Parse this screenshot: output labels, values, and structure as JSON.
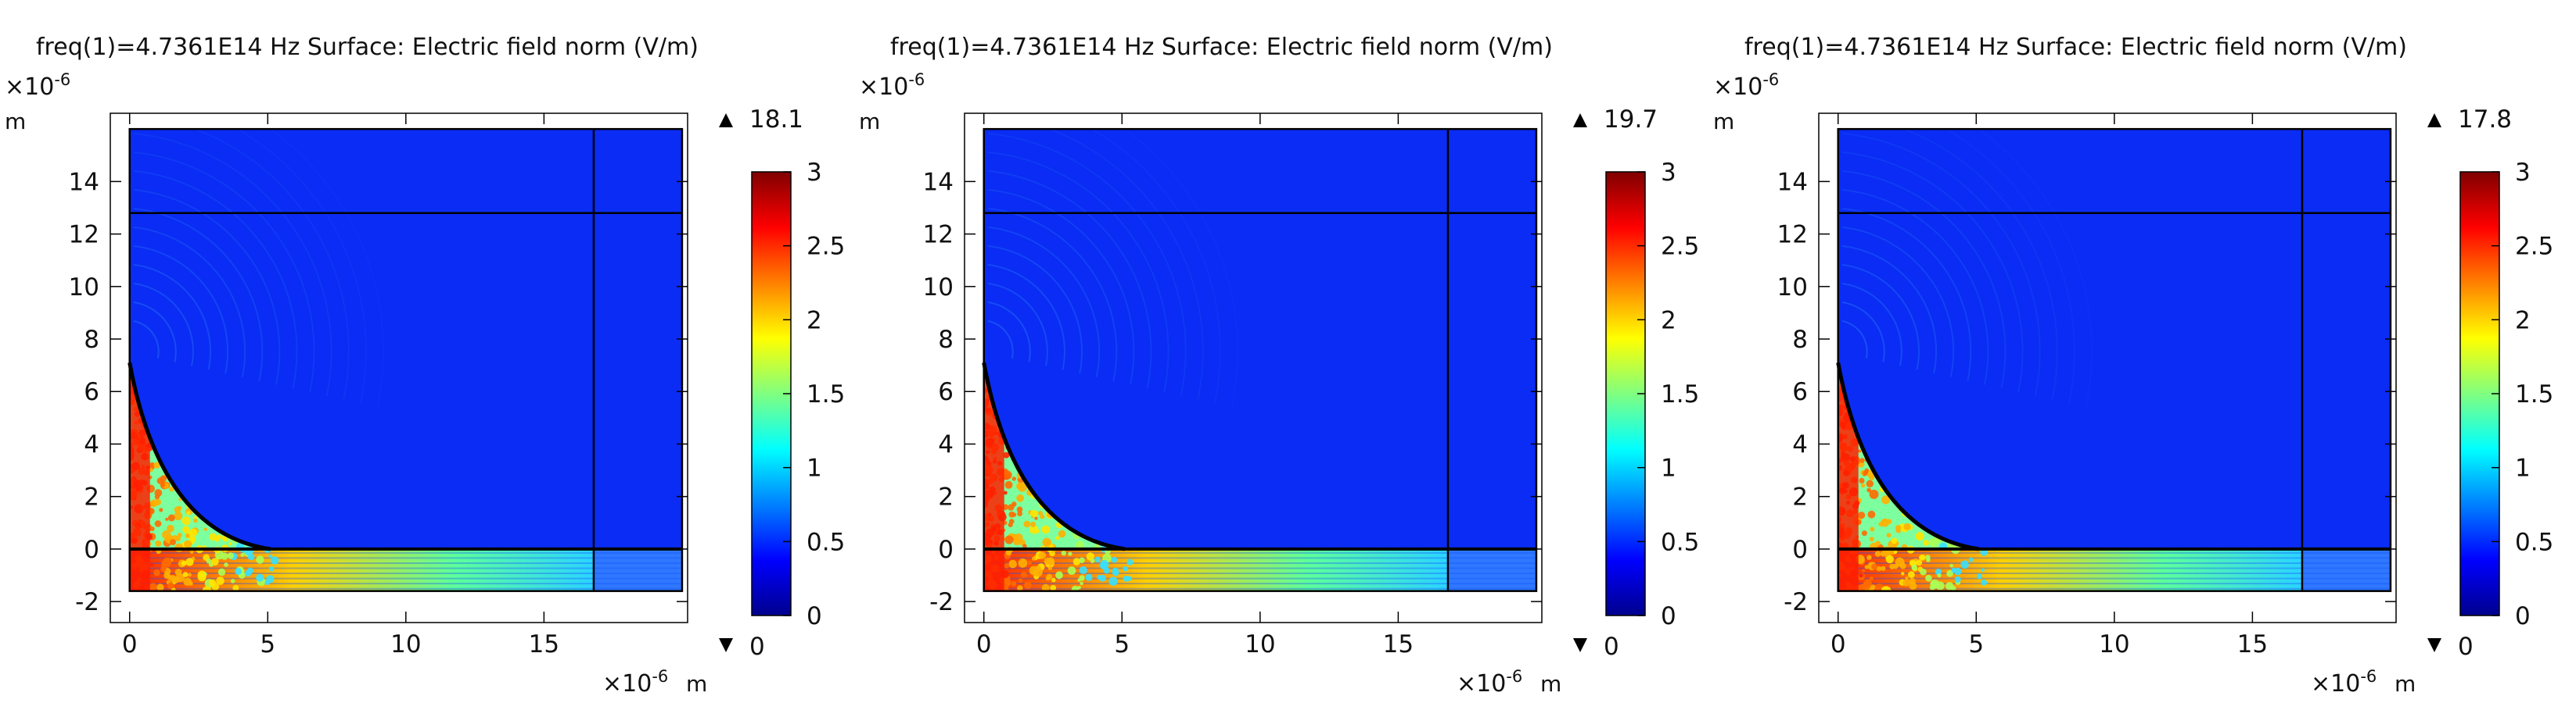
{
  "colors": {
    "background": "#ffffff",
    "domain_blue": "#0a2cf4",
    "jet": [
      "#00008f",
      "#0000ff",
      "#0080ff",
      "#00ffff",
      "#80ff80",
      "#ffff00",
      "#ff8000",
      "#ff0000",
      "#800000"
    ]
  },
  "chart_data": [
    {
      "type": "heatmap",
      "title": "freq(1)=4.7361E14 Hz  Surface: Electric field norm (V/m)",
      "xlabel": "m",
      "ylabel": "m",
      "x_exponent": "×10",
      "x_exponent_power": "-6",
      "y_exponent": "×10",
      "y_exponent_power": "-6",
      "xlim": [
        -0.7,
        20.2
      ],
      "ylim": [
        -2.8,
        16.6
      ],
      "x_ticks": [
        0,
        5,
        10,
        15
      ],
      "x_tick_labels": [
        "0",
        "5",
        "10",
        "15"
      ],
      "y_ticks": [
        -2,
        0,
        2,
        4,
        6,
        8,
        10,
        12,
        14
      ],
      "y_tick_labels": [
        "-2",
        "0",
        "2",
        "4",
        "6",
        "8",
        "10",
        "12",
        "14"
      ],
      "domain": {
        "x": [
          0,
          20
        ],
        "y": [
          -1.6,
          16
        ]
      },
      "interior_lines": {
        "vertical_x": 16.8,
        "horizontal_y": [
          12.8,
          0
        ],
        "arc": {
          "top": [
            0,
            7.1
          ],
          "bottom": [
            5.1,
            0
          ]
        }
      },
      "colorbar": {
        "range": [
          0,
          3
        ],
        "ticks": [
          0,
          0.5,
          1,
          1.5,
          2,
          2.5,
          3
        ],
        "tick_labels": [
          "0",
          "0.5",
          "1",
          "1.5",
          "2",
          "2.5",
          "3"
        ],
        "max_label": "18.1",
        "min_label": "0",
        "colormap": "rainbow (jet)"
      }
    },
    {
      "type": "heatmap",
      "title": "freq(1)=4.7361E14 Hz  Surface: Electric field norm (V/m)",
      "xlabel": "m",
      "ylabel": "m",
      "x_exponent": "×10",
      "x_exponent_power": "-6",
      "y_exponent": "×10",
      "y_exponent_power": "-6",
      "xlim": [
        -0.7,
        20.2
      ],
      "ylim": [
        -2.8,
        16.6
      ],
      "x_ticks": [
        0,
        5,
        10,
        15
      ],
      "x_tick_labels": [
        "0",
        "5",
        "10",
        "15"
      ],
      "y_ticks": [
        -2,
        0,
        2,
        4,
        6,
        8,
        10,
        12,
        14
      ],
      "y_tick_labels": [
        "-2",
        "0",
        "2",
        "4",
        "6",
        "8",
        "10",
        "12",
        "14"
      ],
      "domain": {
        "x": [
          0,
          20
        ],
        "y": [
          -1.6,
          16
        ]
      },
      "interior_lines": {
        "vertical_x": 16.8,
        "horizontal_y": [
          12.8,
          0
        ],
        "arc": {
          "top": [
            0,
            7.1
          ],
          "bottom": [
            5.1,
            0
          ]
        }
      },
      "colorbar": {
        "range": [
          0,
          3
        ],
        "ticks": [
          0,
          0.5,
          1,
          1.5,
          2,
          2.5,
          3
        ],
        "tick_labels": [
          "0",
          "0.5",
          "1",
          "1.5",
          "2",
          "2.5",
          "3"
        ],
        "max_label": "19.7",
        "min_label": "0",
        "colormap": "rainbow (jet)"
      }
    },
    {
      "type": "heatmap",
      "title": "freq(1)=4.7361E14 Hz  Surface: Electric field norm (V/m)",
      "xlabel": "m",
      "ylabel": "m",
      "x_exponent": "×10",
      "x_exponent_power": "-6",
      "y_exponent": "×10",
      "y_exponent_power": "-6",
      "xlim": [
        -0.7,
        20.2
      ],
      "ylim": [
        -2.8,
        16.6
      ],
      "x_ticks": [
        0,
        5,
        10,
        15
      ],
      "x_tick_labels": [
        "0",
        "5",
        "10",
        "15"
      ],
      "y_ticks": [
        -2,
        0,
        2,
        4,
        6,
        8,
        10,
        12,
        14
      ],
      "y_tick_labels": [
        "-2",
        "0",
        "2",
        "4",
        "6",
        "8",
        "10",
        "12",
        "14"
      ],
      "domain": {
        "x": [
          0,
          20
        ],
        "y": [
          -1.6,
          16
        ]
      },
      "interior_lines": {
        "vertical_x": 16.8,
        "horizontal_y": [
          12.8,
          0
        ],
        "arc": {
          "top": [
            0,
            7.1
          ],
          "bottom": [
            5.1,
            0
          ]
        }
      },
      "colorbar": {
        "range": [
          0,
          3
        ],
        "ticks": [
          0,
          0.5,
          1,
          1.5,
          2,
          2.5,
          3
        ],
        "tick_labels": [
          "0",
          "0.5",
          "1",
          "1.5",
          "2",
          "2.5",
          "3"
        ],
        "max_label": "17.8",
        "min_label": "0",
        "colormap": "rainbow (jet)"
      }
    }
  ]
}
